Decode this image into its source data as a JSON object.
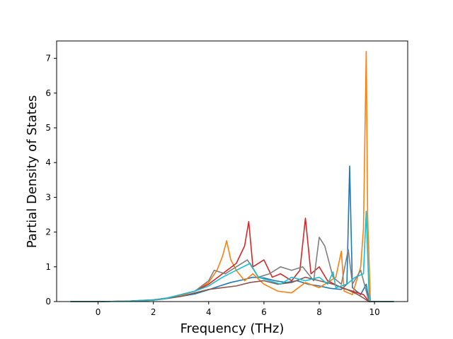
{
  "chart_data": {
    "type": "line",
    "title": "",
    "xlabel": "Frequency (THz)",
    "ylabel": "Partial Density of States",
    "xlim": [
      -1.5,
      11.2
    ],
    "ylim": [
      0,
      7.5
    ],
    "x_ticks": [
      0,
      2,
      4,
      6,
      8,
      10
    ],
    "y_ticks": [
      0,
      1,
      2,
      3,
      4,
      5,
      6,
      7
    ],
    "grid": false,
    "legend": "none",
    "series": [
      {
        "color": "#1f77b4",
        "points": [
          [
            -1.0,
            0
          ],
          [
            0.0,
            0
          ],
          [
            1.0,
            0.01
          ],
          [
            2.0,
            0.04
          ],
          [
            2.5,
            0.09
          ],
          [
            3.0,
            0.15
          ],
          [
            3.5,
            0.22
          ],
          [
            4.0,
            0.34
          ],
          [
            4.4,
            0.45
          ],
          [
            4.8,
            0.55
          ],
          [
            5.2,
            0.62
          ],
          [
            5.6,
            0.7
          ],
          [
            6.0,
            0.68
          ],
          [
            6.4,
            0.6
          ],
          [
            6.8,
            0.55
          ],
          [
            7.2,
            0.6
          ],
          [
            7.6,
            0.5
          ],
          [
            8.0,
            0.45
          ],
          [
            8.4,
            0.38
          ],
          [
            8.8,
            0.35
          ],
          [
            9.0,
            0.5
          ],
          [
            9.1,
            3.9
          ],
          [
            9.2,
            0.4
          ],
          [
            9.5,
            0.2
          ],
          [
            9.7,
            0.5
          ],
          [
            9.8,
            0.0
          ],
          [
            10.7,
            0
          ]
        ]
      },
      {
        "color": "#ff7f0e",
        "points": [
          [
            -1.0,
            0
          ],
          [
            0.0,
            0
          ],
          [
            1.0,
            0.01
          ],
          [
            2.0,
            0.04
          ],
          [
            2.5,
            0.1
          ],
          [
            3.0,
            0.18
          ],
          [
            3.5,
            0.3
          ],
          [
            4.0,
            0.55
          ],
          [
            4.3,
            0.9
          ],
          [
            4.5,
            1.3
          ],
          [
            4.65,
            1.75
          ],
          [
            4.8,
            1.2
          ],
          [
            5.0,
            0.9
          ],
          [
            5.3,
            0.6
          ],
          [
            5.6,
            0.8
          ],
          [
            6.0,
            0.5
          ],
          [
            6.5,
            0.3
          ],
          [
            7.0,
            0.25
          ],
          [
            7.5,
            0.55
          ],
          [
            8.0,
            0.4
          ],
          [
            8.6,
            0.7
          ],
          [
            8.8,
            1.45
          ],
          [
            8.9,
            0.3
          ],
          [
            9.2,
            0.2
          ],
          [
            9.5,
            1.0
          ],
          [
            9.6,
            2.1
          ],
          [
            9.7,
            7.2
          ],
          [
            9.75,
            2.5
          ],
          [
            9.85,
            0.0
          ],
          [
            10.7,
            0
          ]
        ]
      },
      {
        "color": "#d62728",
        "points": [
          [
            -1.0,
            0
          ],
          [
            0.0,
            0
          ],
          [
            1.0,
            0.01
          ],
          [
            2.0,
            0.05
          ],
          [
            2.5,
            0.1
          ],
          [
            3.0,
            0.2
          ],
          [
            3.5,
            0.3
          ],
          [
            4.0,
            0.5
          ],
          [
            4.5,
            0.8
          ],
          [
            5.0,
            1.1
          ],
          [
            5.3,
            1.6
          ],
          [
            5.45,
            2.3
          ],
          [
            5.6,
            1.0
          ],
          [
            6.0,
            1.2
          ],
          [
            6.3,
            0.7
          ],
          [
            6.6,
            0.8
          ],
          [
            7.0,
            0.6
          ],
          [
            7.3,
            0.9
          ],
          [
            7.5,
            2.4
          ],
          [
            7.7,
            0.8
          ],
          [
            8.0,
            1.0
          ],
          [
            8.3,
            0.6
          ],
          [
            8.8,
            0.4
          ],
          [
            9.2,
            0.3
          ],
          [
            9.6,
            0.2
          ],
          [
            9.8,
            0.0
          ],
          [
            10.7,
            0
          ]
        ]
      },
      {
        "color": "#7f7f7f",
        "points": [
          [
            -1.0,
            0
          ],
          [
            0.0,
            0
          ],
          [
            1.0,
            0.01
          ],
          [
            2.0,
            0.05
          ],
          [
            2.5,
            0.1
          ],
          [
            3.0,
            0.2
          ],
          [
            3.5,
            0.3
          ],
          [
            4.0,
            0.6
          ],
          [
            4.2,
            0.9
          ],
          [
            4.6,
            0.8
          ],
          [
            5.0,
            1.0
          ],
          [
            5.4,
            1.2
          ],
          [
            5.8,
            0.7
          ],
          [
            6.2,
            0.8
          ],
          [
            6.6,
            1.0
          ],
          [
            7.0,
            0.9
          ],
          [
            7.4,
            1.0
          ],
          [
            7.8,
            0.6
          ],
          [
            8.0,
            1.85
          ],
          [
            8.2,
            1.6
          ],
          [
            8.5,
            0.7
          ],
          [
            8.8,
            0.5
          ],
          [
            9.05,
            1.5
          ],
          [
            9.2,
            0.5
          ],
          [
            9.5,
            0.9
          ],
          [
            9.8,
            0.0
          ],
          [
            10.7,
            0
          ]
        ]
      },
      {
        "color": "#8c564b",
        "points": [
          [
            -1.0,
            0
          ],
          [
            0.0,
            0
          ],
          [
            1.0,
            0.01
          ],
          [
            2.0,
            0.04
          ],
          [
            2.5,
            0.09
          ],
          [
            3.0,
            0.15
          ],
          [
            3.5,
            0.25
          ],
          [
            4.0,
            0.35
          ],
          [
            4.5,
            0.4
          ],
          [
            5.0,
            0.45
          ],
          [
            5.5,
            0.55
          ],
          [
            6.0,
            0.6
          ],
          [
            6.5,
            0.5
          ],
          [
            7.0,
            0.55
          ],
          [
            7.5,
            0.7
          ],
          [
            8.0,
            0.6
          ],
          [
            8.5,
            0.5
          ],
          [
            9.0,
            0.35
          ],
          [
            9.4,
            0.2
          ],
          [
            9.8,
            0.0
          ],
          [
            10.7,
            0
          ]
        ]
      },
      {
        "color": "#17becf",
        "points": [
          [
            -1.0,
            0
          ],
          [
            0.0,
            0
          ],
          [
            1.0,
            0.01
          ],
          [
            2.0,
            0.04
          ],
          [
            2.5,
            0.1
          ],
          [
            3.0,
            0.2
          ],
          [
            3.5,
            0.3
          ],
          [
            4.0,
            0.45
          ],
          [
            4.5,
            0.7
          ],
          [
            5.0,
            0.9
          ],
          [
            5.5,
            1.1
          ],
          [
            5.8,
            0.7
          ],
          [
            6.2,
            0.6
          ],
          [
            6.6,
            0.5
          ],
          [
            7.0,
            0.7
          ],
          [
            7.5,
            0.6
          ],
          [
            8.0,
            0.7
          ],
          [
            8.3,
            0.5
          ],
          [
            8.5,
            0.85
          ],
          [
            8.6,
            0.4
          ],
          [
            9.0,
            0.5
          ],
          [
            9.3,
            0.7
          ],
          [
            9.6,
            0.8
          ],
          [
            9.7,
            2.6
          ],
          [
            9.8,
            0.2
          ],
          [
            9.85,
            0.0
          ],
          [
            10.7,
            0
          ]
        ]
      }
    ]
  }
}
